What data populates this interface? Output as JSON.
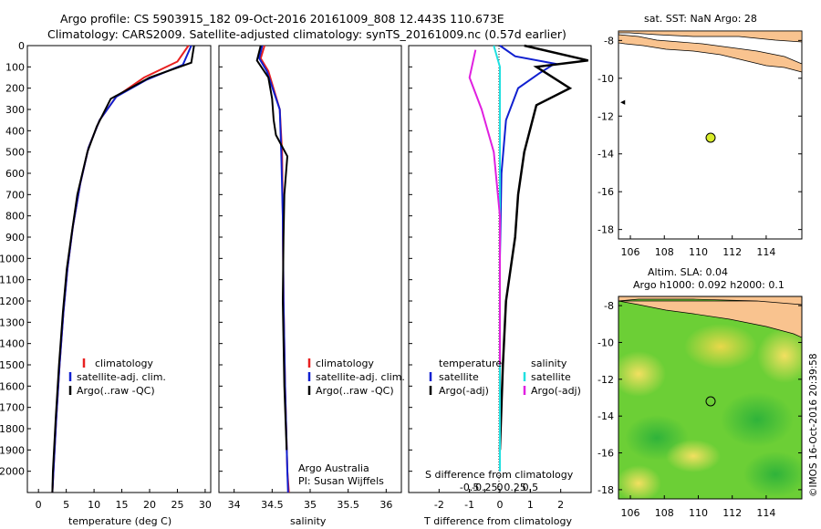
{
  "title_line1": "Argo profile: CS 5903915_182 09-Oct-2016 20161009_808 12.443S 110.673E",
  "title_line2": "Climatology: CARS2009. Satellite-adjusted climatology: synTS_20161009.nc (0.57d earlier)",
  "colors": {
    "climatology": "#e82020",
    "satellite": "#1020d0",
    "argo": "#000000",
    "sat_salinity": "#20e0e0",
    "argo_salinity": "#e020e0",
    "land": "#f9c38f",
    "marker": "#d8ec2a"
  },
  "depth_axis": {
    "ticks": [
      0,
      100,
      200,
      300,
      400,
      500,
      600,
      700,
      800,
      900,
      1000,
      1100,
      1200,
      1300,
      1400,
      1500,
      1600,
      1700,
      1800,
      1900,
      2000
    ]
  },
  "temp_panel": {
    "xlabel": "temperature (deg C)",
    "xlim": [
      -2,
      31
    ],
    "xticks": [
      "0",
      "5",
      "10",
      "15",
      "20",
      "25",
      "30"
    ],
    "legend": [
      "climatology",
      "satellite-adj. clim.",
      "Argo(..raw -QC)"
    ]
  },
  "sal_panel": {
    "xlabel": "salinity",
    "xlim": [
      33.8,
      36.2
    ],
    "xticks": [
      "34",
      "34.5",
      "35",
      "35.5",
      "36"
    ],
    "legend": [
      "climatology",
      "satellite-adj. clim.",
      "Argo(..raw -QC)"
    ],
    "credit1": "Argo Australia",
    "credit2": "PI: Susan Wijffels"
  },
  "diff_panel": {
    "xlabel": "T difference from climatology",
    "slabel": "S difference from climatology",
    "xticks_t": [
      "-2",
      "-1",
      "0",
      "1",
      "2"
    ],
    "xticks_s": [
      "-0.5",
      "-0.25",
      "0",
      "0.25",
      "0.5"
    ],
    "legend_t_title": "temperature",
    "legend_s_title": "salinity",
    "legend_t": [
      "satellite",
      "Argo(-adj)"
    ],
    "legend_s": [
      "satellite",
      "Argo(-adj)"
    ]
  },
  "map1": {
    "title": "sat. SST: NaN Argo: 28",
    "yticks": [
      "-8",
      "-10",
      "-12",
      "-14",
      "-16",
      "-18"
    ],
    "xticks": [
      "106",
      "108",
      "110",
      "112",
      "114"
    ]
  },
  "map2": {
    "title1": "Altim. SLA: 0.04",
    "title2": "Argo h1000: 0.092 h2000: 0.1",
    "yticks": [
      "-8",
      "-10",
      "-12",
      "-14",
      "-16",
      "-18"
    ],
    "xticks": [
      "106",
      "108",
      "110",
      "112",
      "114"
    ]
  },
  "footer": "©IMOS 16-Oct-2016 20:39:58",
  "chart_data": [
    {
      "type": "line",
      "x_label": "temperature (deg C)",
      "y_label": "",
      "ylim": [
        2100,
        0
      ],
      "series": [
        {
          "name": "climatology",
          "points": [
            [
              27,
              0
            ],
            [
              25,
              75
            ],
            [
              19,
              150
            ],
            [
              14,
              240
            ],
            [
              11,
              350
            ],
            [
              9,
              480
            ],
            [
              7.5,
              650
            ],
            [
              6.2,
              850
            ],
            [
              5.2,
              1050
            ],
            [
              4.5,
              1250
            ],
            [
              3.8,
              1500
            ],
            [
              3.2,
              1750
            ],
            [
              2.7,
              2000
            ],
            [
              2.5,
              2100
            ]
          ]
        },
        {
          "name": "satellite-adj. clim.",
          "points": [
            [
              27.5,
              0
            ],
            [
              26,
              90
            ],
            [
              19.5,
              160
            ],
            [
              14,
              240
            ],
            [
              11,
              350
            ],
            [
              9,
              480
            ],
            [
              7.5,
              650
            ],
            [
              6.2,
              850
            ],
            [
              5.2,
              1050
            ],
            [
              4.5,
              1250
            ],
            [
              3.8,
              1500
            ],
            [
              3.2,
              1750
            ],
            [
              2.7,
              2000
            ],
            [
              2.5,
              2100
            ]
          ]
        },
        {
          "name": "Argo(..raw -QC)",
          "points": [
            [
              28,
              0
            ],
            [
              27.5,
              80
            ],
            [
              20,
              150
            ],
            [
              13,
              250
            ],
            [
              10.5,
              380
            ],
            [
              8.8,
              500
            ],
            [
              7,
              700
            ],
            [
              6,
              880
            ],
            [
              5.1,
              1050
            ],
            [
              4.4,
              1250
            ],
            [
              3.7,
              1500
            ],
            [
              3.1,
              1750
            ],
            [
              2.6,
              2000
            ],
            [
              2.5,
              2100
            ]
          ]
        }
      ]
    },
    {
      "type": "line",
      "x_label": "salinity",
      "y_label": "",
      "ylim": [
        2100,
        0
      ],
      "series": [
        {
          "name": "climatology",
          "points": [
            [
              34.4,
              0
            ],
            [
              34.35,
              60
            ],
            [
              34.45,
              120
            ],
            [
              34.6,
              300
            ],
            [
              34.63,
              500
            ],
            [
              34.64,
              800
            ],
            [
              34.65,
              1200
            ],
            [
              34.67,
              1600
            ],
            [
              34.7,
              2000
            ],
            [
              34.72,
              2100
            ]
          ]
        },
        {
          "name": "satellite-adj. clim.",
          "points": [
            [
              34.37,
              0
            ],
            [
              34.33,
              60
            ],
            [
              34.43,
              120
            ],
            [
              34.6,
              300
            ],
            [
              34.62,
              500
            ],
            [
              34.64,
              800
            ],
            [
              34.65,
              1200
            ],
            [
              34.67,
              1600
            ],
            [
              34.7,
              2000
            ],
            [
              34.71,
              2100
            ]
          ]
        },
        {
          "name": "Argo(..raw -QC)",
          "points": [
            [
              34.35,
              0
            ],
            [
              34.3,
              70
            ],
            [
              34.45,
              150
            ],
            [
              34.5,
              250
            ],
            [
              34.52,
              350
            ],
            [
              34.55,
              420
            ],
            [
              34.7,
              520
            ],
            [
              34.66,
              700
            ],
            [
              34.65,
              900
            ],
            [
              34.64,
              1200
            ],
            [
              34.66,
              1600
            ],
            [
              34.69,
              1900
            ]
          ]
        }
      ]
    },
    {
      "type": "line",
      "x_label": "T difference from climatology",
      "y_label": "",
      "ylim": [
        2100,
        0
      ],
      "series": [
        {
          "name": "satellite",
          "points": [
            [
              0,
              0
            ],
            [
              0.5,
              50
            ],
            [
              1.8,
              85
            ],
            [
              1.3,
              130
            ],
            [
              0.6,
              200
            ],
            [
              0.2,
              350
            ],
            [
              0.05,
              600
            ],
            [
              0,
              1000
            ],
            [
              0,
              2000
            ]
          ]
        },
        {
          "name": "Argo(-adj)",
          "points": [
            [
              0.8,
              0
            ],
            [
              2.9,
              70
            ],
            [
              1.2,
              100
            ],
            [
              2.3,
              200
            ],
            [
              1.2,
              280
            ],
            [
              0.8,
              500
            ],
            [
              0.6,
              700
            ],
            [
              0.5,
              900
            ],
            [
              0.2,
              1200
            ],
            [
              0.1,
              1500
            ],
            [
              0,
              1900
            ]
          ]
        },
        {
          "name": "satellite",
          "points": [
            [
              -0.1,
              0
            ],
            [
              0,
              100
            ],
            [
              0,
              500
            ],
            [
              0,
              2000
            ]
          ]
        },
        {
          "name": "Argo(-adj)",
          "points": [
            [
              -0.4,
              20
            ],
            [
              -0.5,
              150
            ],
            [
              -0.3,
              300
            ],
            [
              -0.1,
              500
            ],
            [
              0,
              800
            ],
            [
              0,
              1500
            ]
          ]
        }
      ]
    }
  ]
}
